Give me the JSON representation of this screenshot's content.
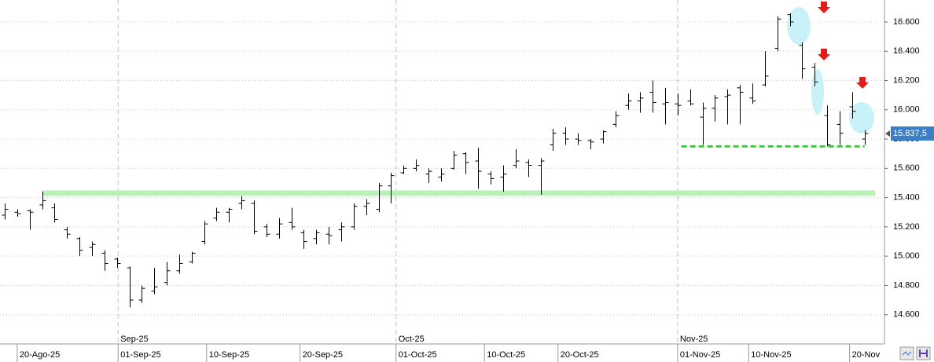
{
  "chart_data": {
    "type": "ohlc",
    "open": [
      15280,
      15300,
      15310,
      15350,
      15330,
      15180,
      15120,
      15060,
      15020,
      14980,
      14920,
      14700,
      14760,
      14820,
      14900,
      14960,
      15100,
      15260,
      15300,
      15360,
      15360,
      15200,
      15150,
      15230,
      15160,
      15120,
      15150,
      15180,
      15200,
      15340,
      15320,
      15480,
      15570,
      15600,
      15560,
      15540,
      15600,
      15700,
      15650,
      15560,
      15540,
      15620,
      15640,
      15620,
      15760,
      15840,
      15800,
      15790,
      15800,
      15900,
      16030,
      16060,
      16120,
      16040,
      16040,
      16060,
      15950,
      16010,
      16090,
      16150,
      16080,
      16170,
      16420,
      16650,
      16440,
      16290,
      15960,
      15900,
      16020,
      15800
    ],
    "high": [
      15360,
      15320,
      15320,
      15440,
      15360,
      15200,
      15130,
      15100,
      15040,
      14990,
      14930,
      14800,
      14920,
      14960,
      15010,
      15030,
      15240,
      15330,
      15330,
      15410,
      15380,
      15220,
      15260,
      15330,
      15180,
      15180,
      15200,
      15230,
      15360,
      15390,
      15500,
      15570,
      15620,
      15660,
      15600,
      15600,
      15720,
      15710,
      15740,
      15580,
      15620,
      15730,
      15660,
      15670,
      15870,
      15880,
      15840,
      15800,
      15860,
      15990,
      16110,
      16120,
      16200,
      16150,
      16110,
      16140,
      16050,
      16100,
      16140,
      16170,
      16180,
      16400,
      16640,
      16660,
      16460,
      16320,
      16030,
      15990,
      16120,
      15860
    ],
    "low": [
      15250,
      15270,
      15180,
      15320,
      15230,
      15120,
      15000,
      15000,
      14900,
      14920,
      14650,
      14680,
      14740,
      14800,
      14880,
      14950,
      15080,
      15240,
      15230,
      15320,
      15150,
      15130,
      15120,
      15180,
      15050,
      15080,
      15080,
      15100,
      15180,
      15280,
      15300,
      15360,
      15560,
      15580,
      15500,
      15510,
      15590,
      15560,
      15460,
      15490,
      15440,
      15600,
      15540,
      15420,
      15720,
      15760,
      15760,
      15730,
      15770,
      15880,
      16000,
      15980,
      15980,
      15900,
      15960,
      16030,
      15760,
      15920,
      15900,
      15900,
      16040,
      16160,
      16400,
      16570,
      16210,
      16160,
      15750,
      15760,
      15940,
      15760
    ],
    "close": [
      15320,
      15290,
      15300,
      15380,
      15250,
      15150,
      15040,
      15080,
      14950,
      14950,
      14700,
      14780,
      14790,
      14900,
      14950,
      15020,
      15220,
      15300,
      15320,
      15380,
      15170,
      15150,
      15220,
      15200,
      15100,
      15160,
      15140,
      15200,
      15340,
      15360,
      15480,
      15550,
      15600,
      15620,
      15580,
      15560,
      15690,
      15640,
      15580,
      15530,
      15560,
      15650,
      15620,
      15650,
      15840,
      15800,
      15790,
      15780,
      15850,
      15960,
      16060,
      16080,
      16050,
      16050,
      16030,
      16040,
      16010,
      16080,
      16100,
      16120,
      16060,
      16230,
      16620,
      16600,
      16280,
      16190,
      15760,
      15840,
      15990,
      15837.5
    ],
    "last_price": {
      "value": 15837.5,
      "label": "15.837,5"
    },
    "levels": [
      15430,
      15750
    ],
    "ylim": [
      14400,
      16750
    ],
    "yticks": [
      {
        "value": 14600,
        "label": "14.600"
      },
      {
        "value": 14800,
        "label": "14.800"
      },
      {
        "value": 15000,
        "label": "15.000"
      },
      {
        "value": 15200,
        "label": "15.200"
      },
      {
        "value": 15400,
        "label": "15.400"
      },
      {
        "value": 15600,
        "label": "15.600"
      },
      {
        "value": 15800,
        "label": "15.800"
      },
      {
        "value": 16000,
        "label": "16.000"
      },
      {
        "value": 16200,
        "label": "16.200"
      },
      {
        "value": 16400,
        "label": "16.400"
      },
      {
        "value": 16600,
        "label": "16.600"
      }
    ],
    "xticks": [
      {
        "value": 1,
        "label": "20-Ago-25"
      },
      {
        "value": 9.1,
        "label": "01-Sep-25"
      },
      {
        "value": 16.2,
        "label": "10-Sep-25"
      },
      {
        "value": 23.7,
        "label": "20-Sep-25"
      },
      {
        "value": 31.4,
        "label": "01-Oct-25"
      },
      {
        "value": 38.5,
        "label": "10-Oct-25"
      },
      {
        "value": 44.4,
        "label": "20-Oct-25"
      },
      {
        "value": 54,
        "label": "01-Nov-25"
      },
      {
        "value": 59.7,
        "label": "10-Nov-25"
      },
      {
        "value": 67.8,
        "label": "20-Nov"
      }
    ],
    "month_ticks": [
      {
        "value": 9.1,
        "label": "Sep-25"
      },
      {
        "value": 31.4,
        "label": "Oct-25"
      },
      {
        "value": 54,
        "label": "Nov-25"
      }
    ],
    "color": "#000000",
    "grid": true
  }
}
